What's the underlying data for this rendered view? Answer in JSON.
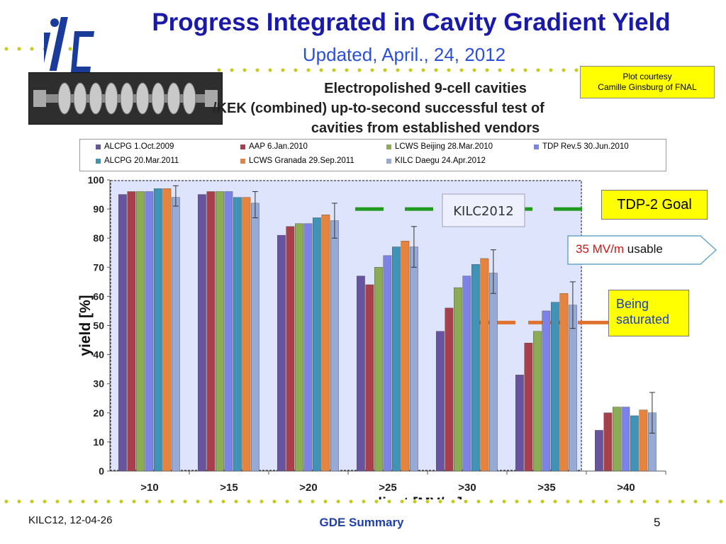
{
  "header": {
    "title": "Progress Integrated in Cavity Gradient Yield",
    "subtitle": "Updated, April., 24, 2012",
    "logo_text": "ilc",
    "courtesy_line1": "Plot  courtesy",
    "courtesy_line2": "Camille Ginsburg of FNAL"
  },
  "annotations": {
    "tdp_goal": "TDP-2 Goal",
    "usable_value": "35 MV/m",
    "usable_word": "usable",
    "saturated_line1": "Being",
    "saturated_line2": "saturated",
    "kilc_label": "KILC2012"
  },
  "footer": {
    "left": "KILC12, 12-04-26",
    "center": "GDE Summary",
    "page": "5"
  },
  "colors": {
    "title": "#1a1aa8",
    "goal_line": "#1f9a1f",
    "saturation_line": "#e0722d",
    "callout": "#ffff00"
  },
  "chart_data": {
    "type": "bar",
    "title_lines": [
      "Electropolished 9-cell cavities",
      "/KEK (combined) up-to-second successful test of",
      "cavities from established vendors"
    ],
    "xlabel": "max gradient [MV/m]",
    "ylabel": "yield [%]",
    "ylim": [
      0,
      100
    ],
    "yticks": [
      0,
      10,
      20,
      30,
      40,
      50,
      60,
      70,
      80,
      90,
      100
    ],
    "categories": [
      ">10",
      ">15",
      ">20",
      ">25",
      ">30",
      ">35",
      ">40"
    ],
    "series": [
      {
        "name": "ALCPG 1.Oct.2009",
        "color": "#67539e",
        "values": [
          95,
          95,
          81,
          67,
          48,
          33,
          14
        ]
      },
      {
        "name": "AAP 6.Jan.2010",
        "color": "#a4414c",
        "values": [
          96,
          96,
          84,
          64,
          56,
          44,
          20
        ]
      },
      {
        "name": "LCWS Beijing 28.Mar.2010",
        "color": "#8bac55",
        "values": [
          96,
          96,
          85,
          70,
          63,
          48,
          22
        ]
      },
      {
        "name": "TDP Rev.5 30.Jun.2010",
        "color": "#7c83e8",
        "values": [
          96,
          96,
          85,
          74,
          67,
          55,
          22
        ]
      },
      {
        "name": "ALCPG 20.Mar.2011",
        "color": "#3f92b8",
        "values": [
          97,
          94,
          87,
          77,
          71,
          58,
          19
        ]
      },
      {
        "name": "LCWS Granada 29.Sep.2011",
        "color": "#e5843f",
        "values": [
          97,
          94,
          88,
          79,
          73,
          61,
          21
        ]
      },
      {
        "name": "KILC Daegu 24.Apr.2012",
        "color": "#97aad6",
        "values": [
          94,
          92,
          86,
          77,
          68,
          57,
          20
        ],
        "error_low": [
          91,
          87,
          80,
          70,
          61,
          49,
          13
        ],
        "error_high": [
          98,
          96,
          92,
          84,
          76,
          65,
          27
        ]
      }
    ],
    "goal_level": 90,
    "saturation_level": 51,
    "shaded_region": "categories >10 to >35",
    "grid": false,
    "legend": "top"
  }
}
